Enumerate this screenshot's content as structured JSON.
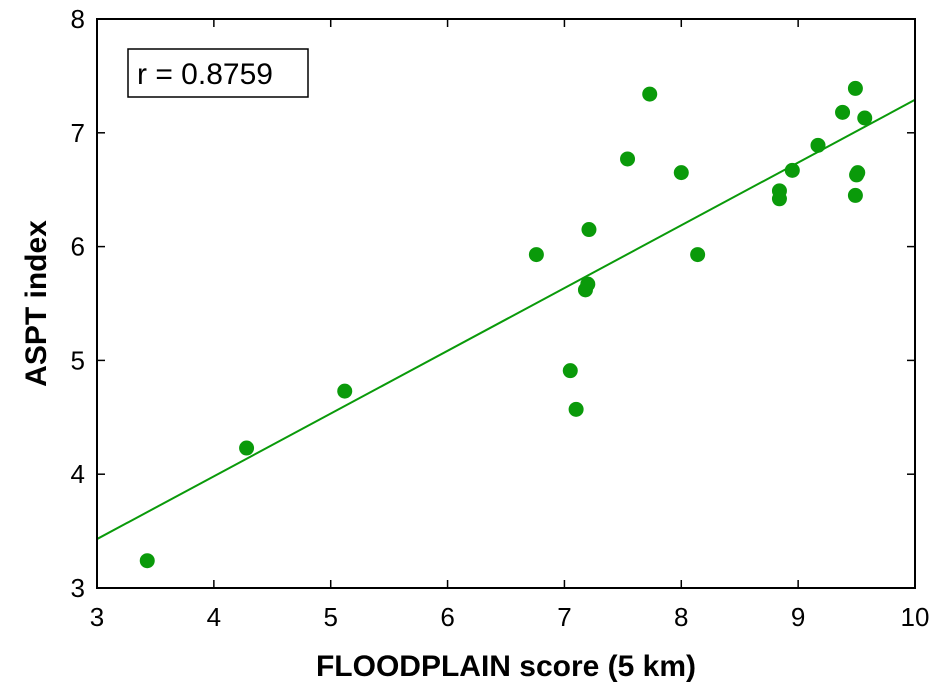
{
  "chart_data": {
    "type": "scatter",
    "title": "",
    "xlabel": "FLOODPLAIN score (5 km)",
    "ylabel": "ASPT index",
    "xlim": [
      3,
      10
    ],
    "ylim": [
      3,
      8
    ],
    "xticks": [
      "3",
      "4",
      "5",
      "6",
      "7",
      "8",
      "9",
      "10"
    ],
    "yticks": [
      "3",
      "4",
      "5",
      "6",
      "7",
      "8"
    ],
    "grid": false,
    "colors": {
      "points": "#0a9a0a",
      "fit_line": "#0a9a0a",
      "axes": "#000000"
    },
    "annotation": "r = 0.8759",
    "regression_line": {
      "x": [
        3,
        10
      ],
      "y": [
        3.43,
        7.29
      ]
    },
    "series": [
      {
        "x": [
          3.43,
          4.28,
          5.12,
          6.76,
          7.05,
          7.1,
          7.18,
          7.2,
          7.21,
          7.54,
          7.73,
          8.0,
          8.14,
          8.84,
          8.84,
          8.95,
          9.17,
          9.38,
          9.49,
          9.49,
          9.5,
          9.51,
          9.57
        ],
        "y": [
          3.24,
          4.23,
          4.73,
          5.93,
          4.91,
          4.57,
          5.62,
          5.67,
          6.15,
          6.77,
          7.34,
          6.65,
          5.93,
          6.49,
          6.42,
          6.67,
          6.89,
          7.18,
          7.39,
          6.45,
          6.63,
          6.65,
          7.13
        ]
      }
    ]
  }
}
